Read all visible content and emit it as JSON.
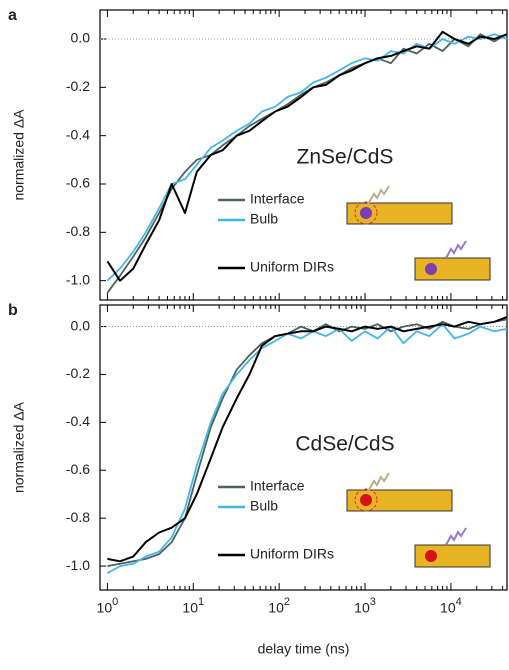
{
  "chart_data": [
    {
      "type": "line",
      "panel_label": "a",
      "ylabel": "normalized ΔA",
      "annotation": "ZnSe/CdS",
      "log_x": true,
      "zero_line": true,
      "xlim": [
        0.82,
        45000
      ],
      "ylim": [
        -1.08,
        0.12
      ],
      "yticks": [
        {
          "value": 0,
          "label": "0.0"
        },
        -0.2,
        -0.4,
        -0.6,
        -0.8,
        {
          "value": -1,
          "label": "-1.0"
        }
      ],
      "x": [
        1,
        1.4,
        2,
        2.8,
        4,
        5.6,
        8,
        11,
        16,
        22,
        32,
        45,
        63,
        90,
        125,
        180,
        250,
        350,
        500,
        700,
        1000,
        1400,
        2000,
        2800,
        4000,
        5600,
        8000,
        11000,
        16000,
        22000,
        32000,
        45000
      ],
      "series": [
        {
          "name": "Interface",
          "color": "#4d625a",
          "values": [
            -1.05,
            -0.98,
            -0.9,
            -0.82,
            -0.72,
            -0.62,
            -0.55,
            -0.5,
            -0.48,
            -0.44,
            -0.4,
            -0.36,
            -0.33,
            -0.3,
            -0.27,
            -0.23,
            -0.2,
            -0.18,
            -0.15,
            -0.12,
            -0.1,
            -0.08,
            -0.1,
            -0.04,
            -0.06,
            -0.02,
            -0.05,
            0.0,
            -0.03,
            0.02,
            -0.01,
            0.02
          ]
        },
        {
          "name": "Bulb",
          "color": "#45b6ea",
          "values": [
            -1.0,
            -0.95,
            -0.88,
            -0.8,
            -0.7,
            -0.6,
            -0.58,
            -0.52,
            -0.45,
            -0.42,
            -0.38,
            -0.35,
            -0.3,
            -0.28,
            -0.24,
            -0.22,
            -0.18,
            -0.16,
            -0.13,
            -0.1,
            -0.08,
            -0.09,
            -0.05,
            -0.06,
            -0.02,
            -0.04,
            0.0,
            -0.02,
            0.01,
            0.0,
            0.02,
            0.0
          ]
        },
        {
          "name": "Uniform DIRs",
          "color": "#000000",
          "values": [
            -0.92,
            -1.0,
            -0.95,
            -0.85,
            -0.75,
            -0.6,
            -0.72,
            -0.55,
            -0.48,
            -0.46,
            -0.4,
            -0.38,
            -0.34,
            -0.3,
            -0.28,
            -0.24,
            -0.2,
            -0.19,
            -0.15,
            -0.13,
            -0.1,
            -0.08,
            -0.07,
            -0.05,
            -0.03,
            -0.04,
            0.03,
            0.0,
            -0.02,
            0.01,
            0.0,
            0.02
          ]
        }
      ]
    },
    {
      "type": "line",
      "panel_label": "b",
      "ylabel": "normalized ΔA",
      "xlabel": "delay time (ns)",
      "annotation": "CdSe/CdS",
      "log_x": true,
      "zero_line": true,
      "xlim": [
        0.82,
        45000
      ],
      "ylim": [
        -1.1,
        0.09
      ],
      "xticks": [
        {
          "value": 1,
          "label": "10^0"
        },
        {
          "value": 10,
          "label": "10^1"
        },
        {
          "value": 100,
          "label": "10^2"
        },
        {
          "value": 1000,
          "label": "10^3"
        },
        {
          "value": 10000,
          "label": "10^4"
        }
      ],
      "yticks": [
        {
          "value": 0,
          "label": "0.0"
        },
        -0.2,
        -0.4,
        -0.6,
        -0.8,
        {
          "value": -1,
          "label": "-1.0"
        }
      ],
      "x": [
        1,
        1.4,
        2,
        2.8,
        4,
        5.6,
        8,
        11,
        16,
        22,
        32,
        45,
        63,
        90,
        125,
        180,
        250,
        350,
        500,
        700,
        1000,
        1400,
        2000,
        2800,
        4000,
        5600,
        8000,
        11000,
        16000,
        22000,
        32000,
        45000
      ],
      "series": [
        {
          "name": "Interface",
          "color": "#4d625a",
          "values": [
            -1.0,
            -0.99,
            -0.98,
            -0.97,
            -0.95,
            -0.9,
            -0.8,
            -0.62,
            -0.42,
            -0.3,
            -0.18,
            -0.12,
            -0.07,
            -0.04,
            -0.03,
            0.0,
            -0.02,
            0.01,
            -0.02,
            0.0,
            -0.01,
            0.01,
            -0.02,
            0.0,
            0.01,
            -0.01,
            0.02,
            0.0,
            -0.01,
            0.01,
            0.02,
            0.03
          ]
        },
        {
          "name": "Bulb",
          "color": "#45b6ea",
          "values": [
            -1.03,
            -1.0,
            -0.99,
            -0.96,
            -0.94,
            -0.88,
            -0.76,
            -0.58,
            -0.4,
            -0.28,
            -0.2,
            -0.14,
            -0.09,
            -0.06,
            -0.03,
            -0.05,
            -0.02,
            -0.04,
            -0.01,
            -0.06,
            -0.02,
            -0.05,
            0.0,
            -0.07,
            -0.02,
            -0.04,
            0.01,
            -0.05,
            -0.03,
            0.0,
            -0.02,
            -0.01
          ]
        },
        {
          "name": "Uniform DIRs",
          "color": "#000000",
          "values": [
            -0.97,
            -0.98,
            -0.96,
            -0.9,
            -0.86,
            -0.84,
            -0.8,
            -0.7,
            -0.55,
            -0.42,
            -0.3,
            -0.2,
            -0.08,
            -0.04,
            -0.03,
            -0.02,
            -0.02,
            0.0,
            -0.01,
            -0.02,
            0.0,
            -0.01,
            0.0,
            -0.02,
            -0.01,
            0.0,
            0.01,
            0.0,
            0.02,
            0.01,
            0.02,
            0.04
          ]
        }
      ]
    }
  ]
}
